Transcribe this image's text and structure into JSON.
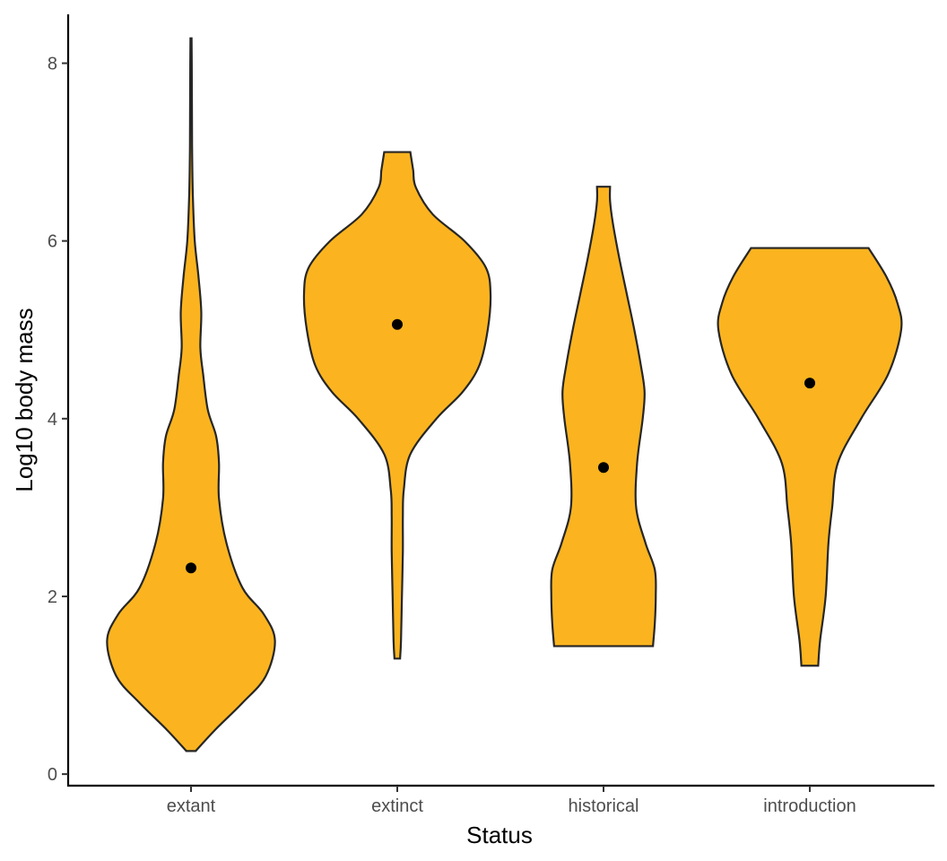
{
  "chart_data": {
    "type": "violin",
    "title": "",
    "xlabel": "Status",
    "ylabel": "Log10 body mass",
    "categories": [
      "extant",
      "extinct",
      "historical",
      "introduction"
    ],
    "ylim": [
      -0.13,
      8.55
    ],
    "yticks": [
      0,
      2,
      4,
      6,
      8
    ],
    "grid": false,
    "legend": "none",
    "fill_color": "#FBB41F",
    "outline_color": "#262626",
    "point_color": "#000000",
    "points": [
      {
        "category": "extant",
        "y": 2.32
      },
      {
        "category": "extinct",
        "y": 5.06
      },
      {
        "category": "historical",
        "y": 3.45
      },
      {
        "category": "introduction",
        "y": 4.4
      }
    ],
    "violins": [
      {
        "category": "extant",
        "min": 0.26,
        "max": 8.28,
        "profile": [
          [
            0.26,
            0.05
          ],
          [
            0.5,
            0.26
          ],
          [
            0.8,
            0.55
          ],
          [
            1.1,
            0.8
          ],
          [
            1.5,
            0.9
          ],
          [
            1.8,
            0.78
          ],
          [
            2.1,
            0.55
          ],
          [
            2.6,
            0.38
          ],
          [
            3.1,
            0.3
          ],
          [
            3.5,
            0.3
          ],
          [
            3.8,
            0.27
          ],
          [
            4.1,
            0.18
          ],
          [
            4.5,
            0.13
          ],
          [
            4.8,
            0.1
          ],
          [
            5.2,
            0.11
          ],
          [
            5.6,
            0.08
          ],
          [
            6.0,
            0.04
          ],
          [
            6.5,
            0.02
          ],
          [
            7.0,
            0.012
          ],
          [
            7.5,
            0.01
          ],
          [
            8.0,
            0.008
          ],
          [
            8.28,
            0.006
          ]
        ]
      },
      {
        "category": "extinct",
        "min": 1.3,
        "max": 7.0,
        "profile": [
          [
            1.3,
            0.03
          ],
          [
            1.5,
            0.04
          ],
          [
            2.0,
            0.05
          ],
          [
            2.5,
            0.06
          ],
          [
            2.9,
            0.06
          ],
          [
            3.2,
            0.07
          ],
          [
            3.6,
            0.14
          ],
          [
            4.0,
            0.42
          ],
          [
            4.3,
            0.7
          ],
          [
            4.6,
            0.88
          ],
          [
            5.0,
            0.97
          ],
          [
            5.4,
            1.0
          ],
          [
            5.7,
            0.95
          ],
          [
            6.0,
            0.72
          ],
          [
            6.3,
            0.38
          ],
          [
            6.6,
            0.2
          ],
          [
            6.8,
            0.17
          ],
          [
            7.0,
            0.14
          ]
        ]
      },
      {
        "category": "historical",
        "min": 1.44,
        "max": 6.61,
        "profile": [
          [
            1.44,
            0.53
          ],
          [
            1.7,
            0.55
          ],
          [
            2.0,
            0.56
          ],
          [
            2.3,
            0.55
          ],
          [
            2.6,
            0.45
          ],
          [
            3.0,
            0.35
          ],
          [
            3.5,
            0.36
          ],
          [
            4.0,
            0.42
          ],
          [
            4.3,
            0.44
          ],
          [
            4.6,
            0.4
          ],
          [
            5.0,
            0.33
          ],
          [
            5.4,
            0.25
          ],
          [
            5.8,
            0.17
          ],
          [
            6.2,
            0.1
          ],
          [
            6.45,
            0.07
          ],
          [
            6.61,
            0.07
          ]
        ]
      },
      {
        "category": "introduction",
        "min": 1.22,
        "max": 5.92,
        "profile": [
          [
            1.22,
            0.09
          ],
          [
            1.5,
            0.11
          ],
          [
            2.0,
            0.17
          ],
          [
            2.6,
            0.2
          ],
          [
            3.0,
            0.24
          ],
          [
            3.5,
            0.3
          ],
          [
            4.0,
            0.55
          ],
          [
            4.5,
            0.84
          ],
          [
            5.0,
            0.98
          ],
          [
            5.3,
            0.94
          ],
          [
            5.6,
            0.82
          ],
          [
            5.92,
            0.63
          ]
        ]
      }
    ]
  }
}
